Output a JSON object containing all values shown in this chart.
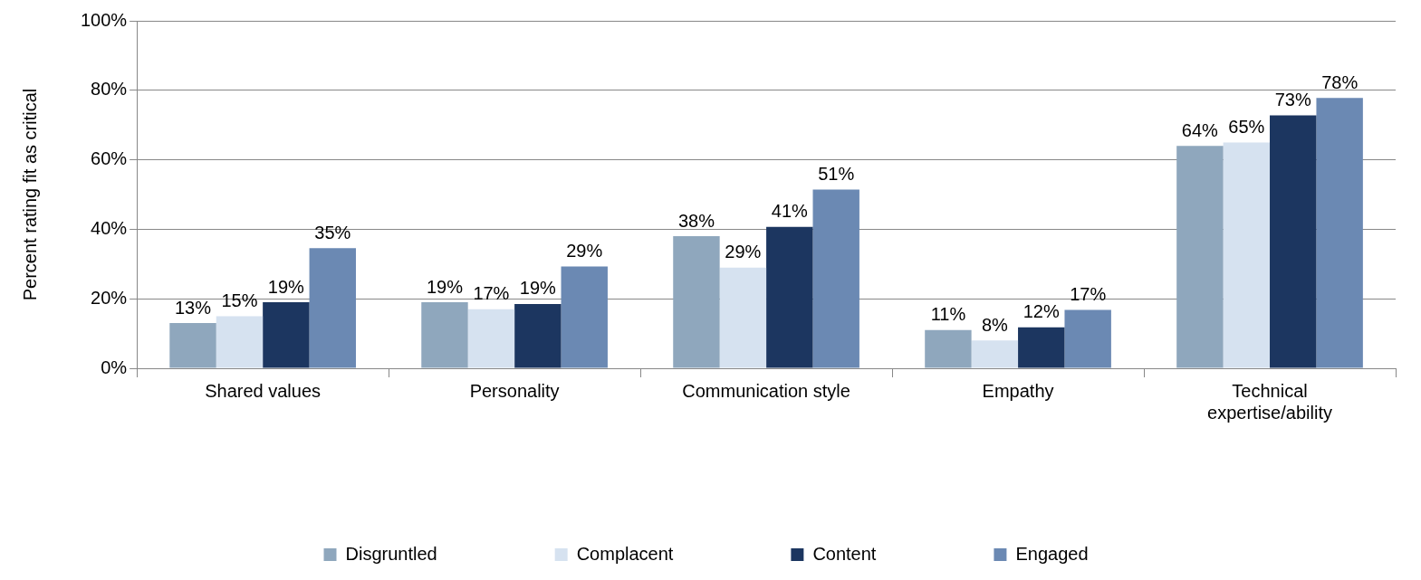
{
  "chart_data": {
    "type": "bar",
    "ylabel": "Percent rating fit as critical",
    "categories": [
      "Shared values",
      "Personality",
      "Communication style",
      "Empathy",
      "Technical expertise/ability"
    ],
    "series": [
      {
        "name": "Disgruntled",
        "color": "#8fa7bd",
        "values": [
          13,
          19,
          38,
          11,
          64
        ],
        "value_labels": [
          "13%",
          "19%",
          "38%",
          "11%",
          "64%"
        ]
      },
      {
        "name": "Complacent",
        "color": "#d6e2f0",
        "values": [
          15,
          17,
          29,
          8,
          65
        ],
        "value_labels": [
          "15%",
          "17%",
          "29%",
          "8%",
          "65%"
        ]
      },
      {
        "name": "Content",
        "color": "#1c3660",
        "values": [
          19,
          18.5,
          40.7,
          11.8,
          72.8
        ],
        "value_labels": [
          "19%",
          "19%",
          "41%",
          "12%",
          "73%"
        ]
      },
      {
        "name": "Engaged",
        "color": "#6b89b3",
        "values": [
          34.6,
          29.3,
          51.4,
          16.8,
          77.8
        ],
        "value_labels": [
          "35%",
          "29%",
          "51%",
          "17%",
          "78%"
        ]
      }
    ],
    "ylim": [
      0,
      100
    ],
    "yticks": [
      {
        "value": 0,
        "label": "0%"
      },
      {
        "value": 20,
        "label": "20%"
      },
      {
        "value": 40,
        "label": "40%"
      },
      {
        "value": 60,
        "label": "60%"
      },
      {
        "value": 80,
        "label": "80%"
      },
      {
        "value": 100,
        "label": "100%"
      }
    ],
    "grid": "y",
    "legend": "bottom"
  }
}
